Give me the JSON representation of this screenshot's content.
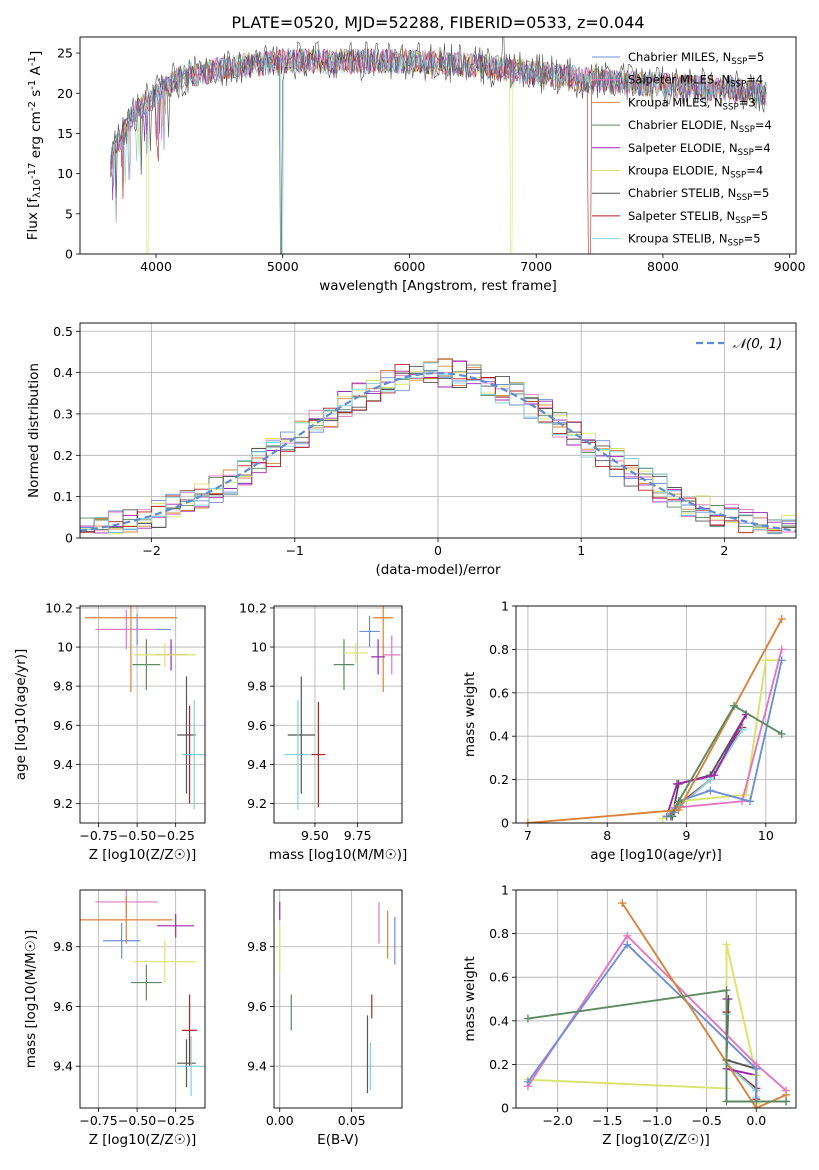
{
  "figure_title": "PLATE=0520, MJD=52288, FIBERID=0533, z=0.044",
  "series_colors": [
    "#6f8fd8",
    "#e377c2",
    "#d9843a",
    "#5d8a63",
    "#9c27b0",
    "#d9e36a",
    "#555555",
    "#b22222",
    "#7fd3dd"
  ],
  "series_names": [
    "Chabrier MILES, N$SSP=5",
    "Salpeter MILES, N$SSP=4",
    "Kroupa MILES, N$SSP=3",
    "Chabrier ELODIE, N$SSP=4",
    "Salpeter ELODIE, N$SSP=4",
    "Kroupa ELODIE, N$SSP=4",
    "Chabrier STELIB, N$SSP=5",
    "Salpeter STELIB, N$SSP=5",
    "Kroupa STELIB, N$SSP=5"
  ],
  "chart_data": [
    {
      "id": "spectrum",
      "type": "line",
      "title": "PLATE=0520, MJD=52288, FIBERID=0533, z=0.044",
      "xlabel": "wavelength [Angstrom, rest frame]",
      "ylabel": "Flux [f$λ10$-17 erg cm$-2 s$-1 A$-1]",
      "xlim": [
        3400,
        9050
      ],
      "ylim": [
        0,
        27
      ],
      "xticks": [
        4000,
        5000,
        6000,
        7000,
        8000,
        9000
      ],
      "yticks": [
        0,
        5,
        10,
        15,
        20,
        25
      ],
      "grid": false,
      "legend": "top-right",
      "series_wavelength_range": [
        3640,
        8820
      ],
      "continuum_points": {
        "x": [
          3640,
          3800,
          4000,
          4200,
          4500,
          5000,
          5500,
          6000,
          6500,
          7000,
          7500,
          8000,
          8500,
          8820
        ],
        "y": [
          12,
          17,
          20,
          22,
          23,
          24,
          24,
          24,
          23.5,
          22.5,
          21.5,
          21,
          20.5,
          20
        ]
      }
    },
    {
      "id": "residuals",
      "type": "line",
      "xlabel": "(data-model)/error",
      "ylabel": "Normed distribution",
      "xlim": [
        -2.5,
        2.5
      ],
      "ylim": [
        0,
        0.52
      ],
      "xticks": [
        -2,
        -1,
        0,
        1,
        2
      ],
      "yticks": [
        0.0,
        0.1,
        0.2,
        0.3,
        0.4,
        0.5
      ],
      "grid": true,
      "legend": "top-right",
      "reference_curve": "N(0,1)"
    },
    {
      "id": "age_vs_Z",
      "type": "scatter",
      "xlabel": "Z [log10(Z/Z☉)]",
      "ylabel": "age  [log10(age/yr)]",
      "xlim": [
        -0.87,
        -0.06
      ],
      "ylim": [
        9.1,
        10.21
      ],
      "xticks": [
        -0.75,
        -0.5,
        -0.25
      ],
      "xticklabels": [
        "−0.75",
        "−0.50",
        "−0.25"
      ],
      "yticks": [
        9.2,
        9.4,
        9.6,
        9.8,
        10.0,
        10.2
      ],
      "grid": true,
      "points": [
        {
          "s": 0,
          "x": -0.5,
          "y": 10.09,
          "ex": 0.22,
          "ey": 0.08
        },
        {
          "s": 1,
          "x": -0.57,
          "y": 10.09,
          "ex": 0.2,
          "ey": 0.1
        },
        {
          "s": 2,
          "x": -0.54,
          "y": 10.15,
          "ex": 0.3,
          "ey": 0.38
        },
        {
          "s": 3,
          "x": -0.44,
          "y": 9.91,
          "ex": 0.09,
          "ey": 0.13
        },
        {
          "s": 4,
          "x": -0.28,
          "y": 9.96,
          "ex": 0.1,
          "ey": 0.08
        },
        {
          "s": 5,
          "x": -0.32,
          "y": 9.96,
          "ex": 0.2,
          "ey": 0.06
        },
        {
          "s": 6,
          "x": -0.18,
          "y": 9.55,
          "ex": 0.06,
          "ey": 0.3
        },
        {
          "s": 7,
          "x": -0.16,
          "y": 9.45,
          "ex": 0.02,
          "ey": 0.25
        },
        {
          "s": 8,
          "x": -0.13,
          "y": 9.45,
          "ex": 0.08,
          "ey": 0.28
        }
      ]
    },
    {
      "id": "age_vs_mass",
      "type": "scatter",
      "xlabel": "mass [log10(M/M☉)]",
      "ylabel": "",
      "xlim": [
        9.26,
        10.01
      ],
      "ylim": [
        9.1,
        10.21
      ],
      "xticks": [
        9.5,
        9.75
      ],
      "xticklabels": [
        "9.50",
        "9.75"
      ],
      "yticks": [
        9.2,
        9.4,
        9.6,
        9.8,
        10.0,
        10.2
      ],
      "grid": true,
      "points": [
        {
          "s": 0,
          "x": 9.82,
          "y": 10.08,
          "ex": 0.06,
          "ey": 0.08
        },
        {
          "s": 1,
          "x": 9.95,
          "y": 9.96,
          "ex": 0.05,
          "ey": 0.1
        },
        {
          "s": 2,
          "x": 9.9,
          "y": 10.15,
          "ex": 0.06,
          "ey": 0.38
        },
        {
          "s": 3,
          "x": 9.67,
          "y": 9.91,
          "ex": 0.06,
          "ey": 0.13
        },
        {
          "s": 4,
          "x": 9.87,
          "y": 9.95,
          "ex": 0.04,
          "ey": 0.09
        },
        {
          "s": 5,
          "x": 9.74,
          "y": 9.97,
          "ex": 0.07,
          "ey": 0.05
        },
        {
          "s": 6,
          "x": 9.42,
          "y": 9.55,
          "ex": 0.08,
          "ey": 0.3
        },
        {
          "s": 7,
          "x": 9.52,
          "y": 9.45,
          "ex": 0.04,
          "ey": 0.27
        },
        {
          "s": 8,
          "x": 9.4,
          "y": 9.45,
          "ex": 0.08,
          "ey": 0.28
        }
      ]
    },
    {
      "id": "weight_vs_age",
      "type": "line",
      "xlabel": "age  [log10(age/yr)]",
      "ylabel": "mass weight",
      "xlim": [
        6.85,
        10.38
      ],
      "ylim": [
        0,
        1.0
      ],
      "xticks": [
        7,
        8,
        9,
        10
      ],
      "yticks": [
        0.0,
        0.2,
        0.4,
        0.6,
        0.8,
        1.0
      ],
      "grid": true,
      "series": [
        {
          "s": 0,
          "x": [
            8.75,
            8.85,
            8.9,
            9.3,
            9.8,
            10.2
          ],
          "y": [
            0.03,
            0.05,
            0.1,
            0.15,
            0.1,
            0.75
          ]
        },
        {
          "s": 1,
          "x": [
            8.75,
            8.85,
            9.7,
            10.2
          ],
          "y": [
            0.03,
            0.07,
            0.1,
            0.8
          ]
        },
        {
          "s": 2,
          "x": [
            7.0,
            8.9,
            10.2
          ],
          "y": [
            0.0,
            0.06,
            0.94
          ]
        },
        {
          "s": 3,
          "x": [
            8.8,
            8.9,
            9.6,
            10.2
          ],
          "y": [
            0.03,
            0.1,
            0.54,
            0.41
          ]
        },
        {
          "s": 4,
          "x": [
            8.75,
            8.88,
            9.35,
            9.75
          ],
          "y": [
            0.03,
            0.18,
            0.22,
            0.5
          ]
        },
        {
          "s": 5,
          "x": [
            8.7,
            8.9,
            9.75,
            10.0,
            10.2
          ],
          "y": [
            0.02,
            0.1,
            0.13,
            0.75,
            0.75
          ]
        },
        {
          "s": 6,
          "x": [
            8.82,
            8.9,
            9.3,
            9.75
          ],
          "y": [
            0.03,
            0.18,
            0.22,
            0.5
          ]
        },
        {
          "s": 7,
          "x": [
            8.8,
            8.92,
            9.3,
            9.7
          ],
          "y": [
            0.04,
            0.09,
            0.2,
            0.44
          ]
        },
        {
          "s": 8,
          "x": [
            8.82,
            8.92,
            9.3,
            9.7
          ],
          "y": [
            0.05,
            0.08,
            0.2,
            0.43
          ]
        }
      ]
    },
    {
      "id": "mass_vs_Z",
      "type": "scatter",
      "xlabel": "Z [log10(Z/Z☉)]",
      "ylabel": "mass [log10(M/M☉)]",
      "xlim": [
        -0.87,
        -0.06
      ],
      "ylim": [
        9.26,
        9.99
      ],
      "xticks": [
        -0.75,
        -0.5,
        -0.25
      ],
      "xticklabels": [
        "−0.75",
        "−0.50",
        "−0.25"
      ],
      "yticks": [
        9.4,
        9.6,
        9.8
      ],
      "grid": true,
      "points": [
        {
          "s": 0,
          "x": -0.6,
          "y": 9.82,
          "ex": 0.12,
          "ey": 0.06
        },
        {
          "s": 1,
          "x": -0.57,
          "y": 9.95,
          "ex": 0.2,
          "ey": 0.05
        },
        {
          "s": 2,
          "x": -0.57,
          "y": 9.89,
          "ex": 0.3,
          "ey": 0.08
        },
        {
          "s": 3,
          "x": -0.44,
          "y": 9.68,
          "ex": 0.1,
          "ey": 0.06
        },
        {
          "s": 4,
          "x": -0.25,
          "y": 9.87,
          "ex": 0.12,
          "ey": 0.04
        },
        {
          "s": 5,
          "x": -0.32,
          "y": 9.75,
          "ex": 0.2,
          "ey": 0.07
        },
        {
          "s": 6,
          "x": -0.18,
          "y": 9.41,
          "ex": 0.06,
          "ey": 0.08
        },
        {
          "s": 7,
          "x": -0.16,
          "y": 9.52,
          "ex": 0.05,
          "ey": 0.12
        },
        {
          "s": 8,
          "x": -0.15,
          "y": 9.4,
          "ex": 0.08,
          "ey": 0.1
        }
      ]
    },
    {
      "id": "mass_vs_ebv",
      "type": "scatter",
      "xlabel": "E(B-V)",
      "ylabel": "",
      "xlim": [
        -0.004,
        0.085
      ],
      "ylim": [
        9.26,
        9.99
      ],
      "xticks": [
        0.0,
        0.05
      ],
      "xticklabels": [
        "0.00",
        "0.05"
      ],
      "yticks": [
        9.4,
        9.6,
        9.8
      ],
      "grid": true,
      "points": [
        {
          "s": 0,
          "x": 0.08,
          "y": 9.82,
          "ey": 0.08
        },
        {
          "s": 1,
          "x": 0.069,
          "y": 9.88,
          "ey": 0.07
        },
        {
          "s": 2,
          "x": 0.075,
          "y": 9.84,
          "ey": 0.08
        },
        {
          "s": 3,
          "x": 0.008,
          "y": 9.58,
          "ey": 0.06
        },
        {
          "s": 4,
          "x": 0.0,
          "y": 9.92,
          "ey": 0.03
        },
        {
          "s": 5,
          "x": 0.0,
          "y": 9.79,
          "ey": 0.08
        },
        {
          "s": 6,
          "x": 0.061,
          "y": 9.44,
          "ey": 0.13
        },
        {
          "s": 7,
          "x": 0.064,
          "y": 9.6,
          "ey": 0.04
        },
        {
          "s": 8,
          "x": 0.063,
          "y": 9.4,
          "ey": 0.08
        }
      ]
    },
    {
      "id": "weight_vs_Z",
      "type": "line",
      "xlabel": "Z [log10(Z/Z☉)]",
      "ylabel": "mass weight",
      "xlim": [
        -2.42,
        0.4
      ],
      "ylim": [
        0,
        1.0
      ],
      "xticks": [
        -2.0,
        -1.5,
        -1.0,
        -0.5,
        0.0
      ],
      "xticklabels": [
        "−2.0",
        "−1.5",
        "−1.0",
        "−0.5",
        "0.0"
      ],
      "yticks": [
        0.0,
        0.2,
        0.4,
        0.6,
        0.8,
        1.0
      ],
      "grid": true,
      "series": [
        {
          "s": 0,
          "x": [
            -2.3,
            -1.3,
            0.0,
            0.0,
            0.3
          ],
          "y": [
            0.12,
            0.75,
            0.18,
            0.03,
            0.03
          ]
        },
        {
          "s": 1,
          "x": [
            -2.3,
            -1.3,
            0.0,
            0.3
          ],
          "y": [
            0.1,
            0.79,
            0.2,
            0.08
          ]
        },
        {
          "s": 2,
          "x": [
            -1.35,
            0.0,
            0.3
          ],
          "y": [
            0.94,
            0.0,
            0.06
          ]
        },
        {
          "s": 3,
          "x": [
            -2.3,
            -0.3,
            -0.3,
            0.3
          ],
          "y": [
            0.41,
            0.54,
            0.03,
            0.03
          ]
        },
        {
          "s": 4,
          "x": [
            -0.3,
            -0.3,
            0.0,
            0.0
          ],
          "y": [
            0.5,
            0.18,
            0.15,
            0.03
          ]
        },
        {
          "s": 5,
          "x": [
            -2.3,
            -0.3,
            -0.3,
            0.0,
            0.0
          ],
          "y": [
            0.13,
            0.09,
            0.75,
            0.15,
            0.02
          ]
        },
        {
          "s": 6,
          "x": [
            -0.28,
            -0.3,
            0.0,
            0.0
          ],
          "y": [
            0.5,
            0.22,
            0.18,
            0.03
          ]
        },
        {
          "s": 7,
          "x": [
            -0.3,
            -0.3,
            0.0,
            0.0
          ],
          "y": [
            0.44,
            0.2,
            0.09,
            0.04
          ]
        },
        {
          "s": 8,
          "x": [
            -0.3,
            -0.3,
            0.0,
            0.0
          ],
          "y": [
            0.43,
            0.2,
            0.08,
            0.05
          ]
        }
      ]
    }
  ]
}
